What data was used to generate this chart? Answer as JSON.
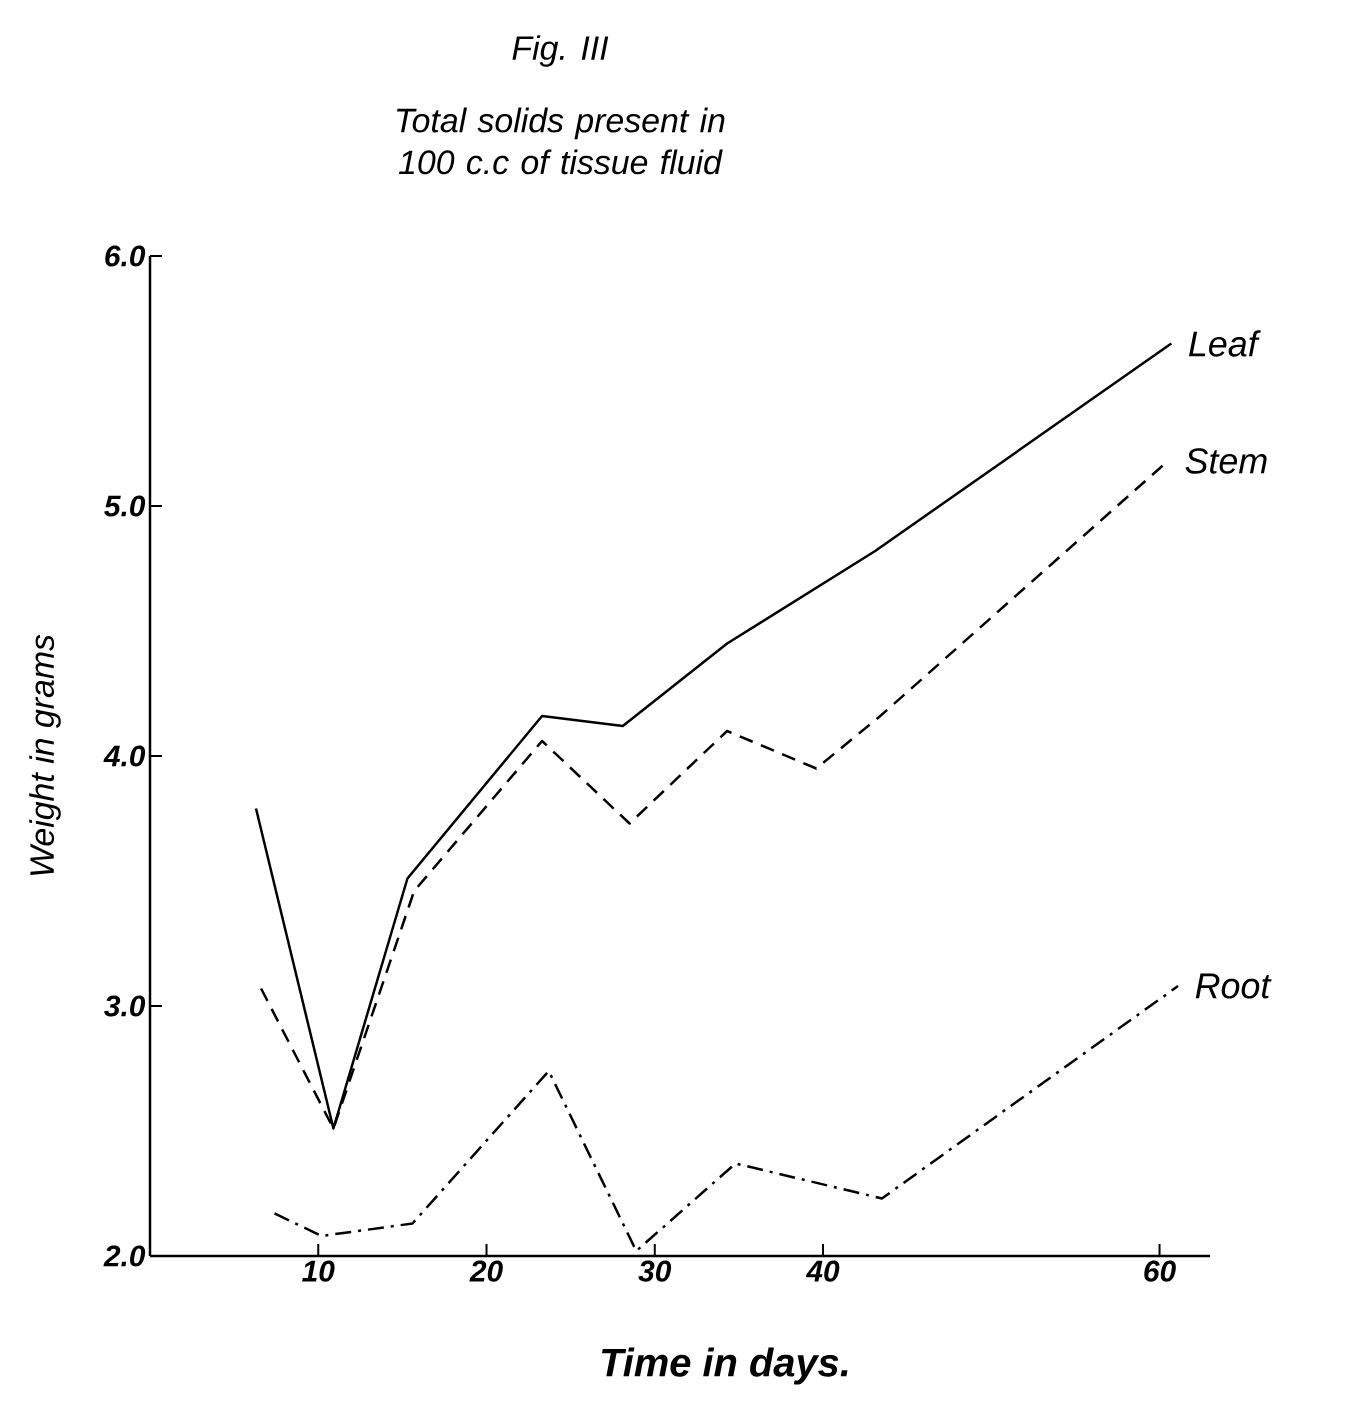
{
  "chart_data": {
    "type": "line",
    "title": "Fig. III",
    "subtitle": "Total solids present in 100 c.c of tissue fluid",
    "xlabel": "Time in days.",
    "ylabel": "Weight in grams",
    "xlim": [
      0,
      63
    ],
    "xticks": [
      10,
      20,
      30,
      40,
      60
    ],
    "ylim": [
      2,
      6
    ],
    "yticks": [
      {
        "value": 2,
        "label": "2.0"
      },
      {
        "value": 3,
        "label": "3.0"
      },
      {
        "value": 4,
        "label": "4.0"
      },
      {
        "value": 5,
        "label": "5.0"
      },
      {
        "value": 6,
        "label": "6.0"
      }
    ],
    "grid": false,
    "series": [
      {
        "name": "Leaf",
        "color": "#000000",
        "line_style": "solid",
        "x": [
          6.3,
          10.9,
          15.3,
          23.3,
          28.1,
          34.3,
          43.1,
          60.7
        ],
        "values": [
          3.79,
          2.51,
          3.51,
          4.16,
          4.12,
          4.45,
          4.82,
          5.65
        ]
      },
      {
        "name": "Stem",
        "color": "#000000",
        "line_style": "dashed",
        "x": [
          6.6,
          10.9,
          15.7,
          23.3,
          28.5,
          34.3,
          39.6,
          43.4,
          60.5
        ],
        "values": [
          3.07,
          2.51,
          3.46,
          4.06,
          3.73,
          4.1,
          3.95,
          4.16,
          5.18
        ]
      },
      {
        "name": "Root",
        "color": "#000000",
        "line_style": "dashdotted",
        "x": [
          7.4,
          10.2,
          15.6,
          23.7,
          28.9,
          34.8,
          43.5,
          61.1
        ],
        "values": [
          2.17,
          2.08,
          2.13,
          2.74,
          2.02,
          2.37,
          2.23,
          3.08
        ]
      }
    ]
  }
}
